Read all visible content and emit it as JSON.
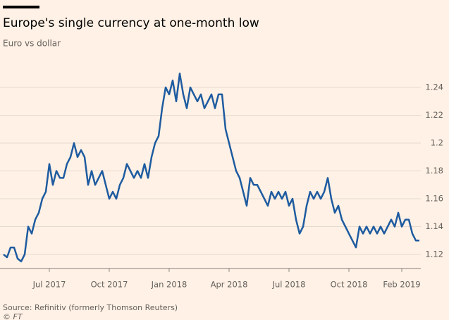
{
  "chart_data": {
    "type": "line",
    "title": "Europe's single currency at one-month low",
    "subtitle": "Euro vs dollar",
    "source": "Source: Refinitiv (formerly Thomson Reuters)",
    "credit": "© FT",
    "color": "#1e5ba0",
    "categories": [
      null,
      null,
      null,
      null,
      null,
      null,
      null,
      null,
      null,
      null,
      null,
      null,
      null,
      "Jul 2017",
      null,
      null,
      null,
      null,
      null,
      null,
      null,
      null,
      null,
      null,
      null,
      null,
      null,
      null,
      null,
      null,
      "Oct 2017",
      null,
      null,
      null,
      null,
      null,
      null,
      null,
      null,
      null,
      null,
      null,
      null,
      null,
      null,
      null,
      null,
      "Jan 2018",
      null,
      null,
      null,
      null,
      null,
      null,
      null,
      null,
      null,
      null,
      null,
      null,
      null,
      null,
      null,
      null,
      "Apr 2018",
      null,
      null,
      null,
      null,
      null,
      null,
      null,
      null,
      null,
      null,
      null,
      null,
      null,
      null,
      null,
      null,
      "Jul 2018",
      null,
      null,
      null,
      null,
      null,
      null,
      null,
      null,
      null,
      null,
      null,
      null,
      null,
      null,
      null,
      null,
      "Oct 2018",
      null,
      null,
      null,
      null,
      null,
      null,
      null,
      null,
      null,
      null,
      null,
      null,
      null,
      null,
      "Feb 2019",
      null,
      null,
      null,
      null,
      null
    ],
    "values": [
      1.12,
      1.118,
      1.125,
      1.125,
      1.117,
      1.115,
      1.12,
      1.14,
      1.135,
      1.145,
      1.15,
      1.16,
      1.165,
      1.185,
      1.17,
      1.18,
      1.175,
      1.175,
      1.185,
      1.19,
      1.2,
      1.19,
      1.195,
      1.19,
      1.17,
      1.18,
      1.17,
      1.175,
      1.18,
      1.17,
      1.16,
      1.165,
      1.16,
      1.17,
      1.175,
      1.185,
      1.18,
      1.175,
      1.18,
      1.175,
      1.185,
      1.175,
      1.19,
      1.2,
      1.205,
      1.225,
      1.24,
      1.235,
      1.245,
      1.23,
      1.25,
      1.235,
      1.225,
      1.24,
      1.235,
      1.23,
      1.235,
      1.225,
      1.23,
      1.235,
      1.225,
      1.235,
      1.235,
      1.21,
      1.2,
      1.19,
      1.18,
      1.175,
      1.165,
      1.155,
      1.175,
      1.17,
      1.17,
      1.165,
      1.16,
      1.155,
      1.165,
      1.16,
      1.165,
      1.16,
      1.165,
      1.155,
      1.16,
      1.145,
      1.135,
      1.14,
      1.155,
      1.165,
      1.16,
      1.165,
      1.16,
      1.165,
      1.175,
      1.16,
      1.15,
      1.155,
      1.145,
      1.14,
      1.135,
      1.13,
      1.125,
      1.14,
      1.135,
      1.14,
      1.135,
      1.14,
      1.135,
      1.14,
      1.135,
      1.14,
      1.145,
      1.14,
      1.15,
      1.14,
      1.145,
      1.145,
      1.135,
      1.13,
      1.13
    ],
    "ylim": [
      1.11,
      1.255
    ],
    "yticks": [
      1.12,
      1.14,
      1.16,
      1.18,
      1.2,
      1.22,
      1.24
    ],
    "grid": true
  }
}
